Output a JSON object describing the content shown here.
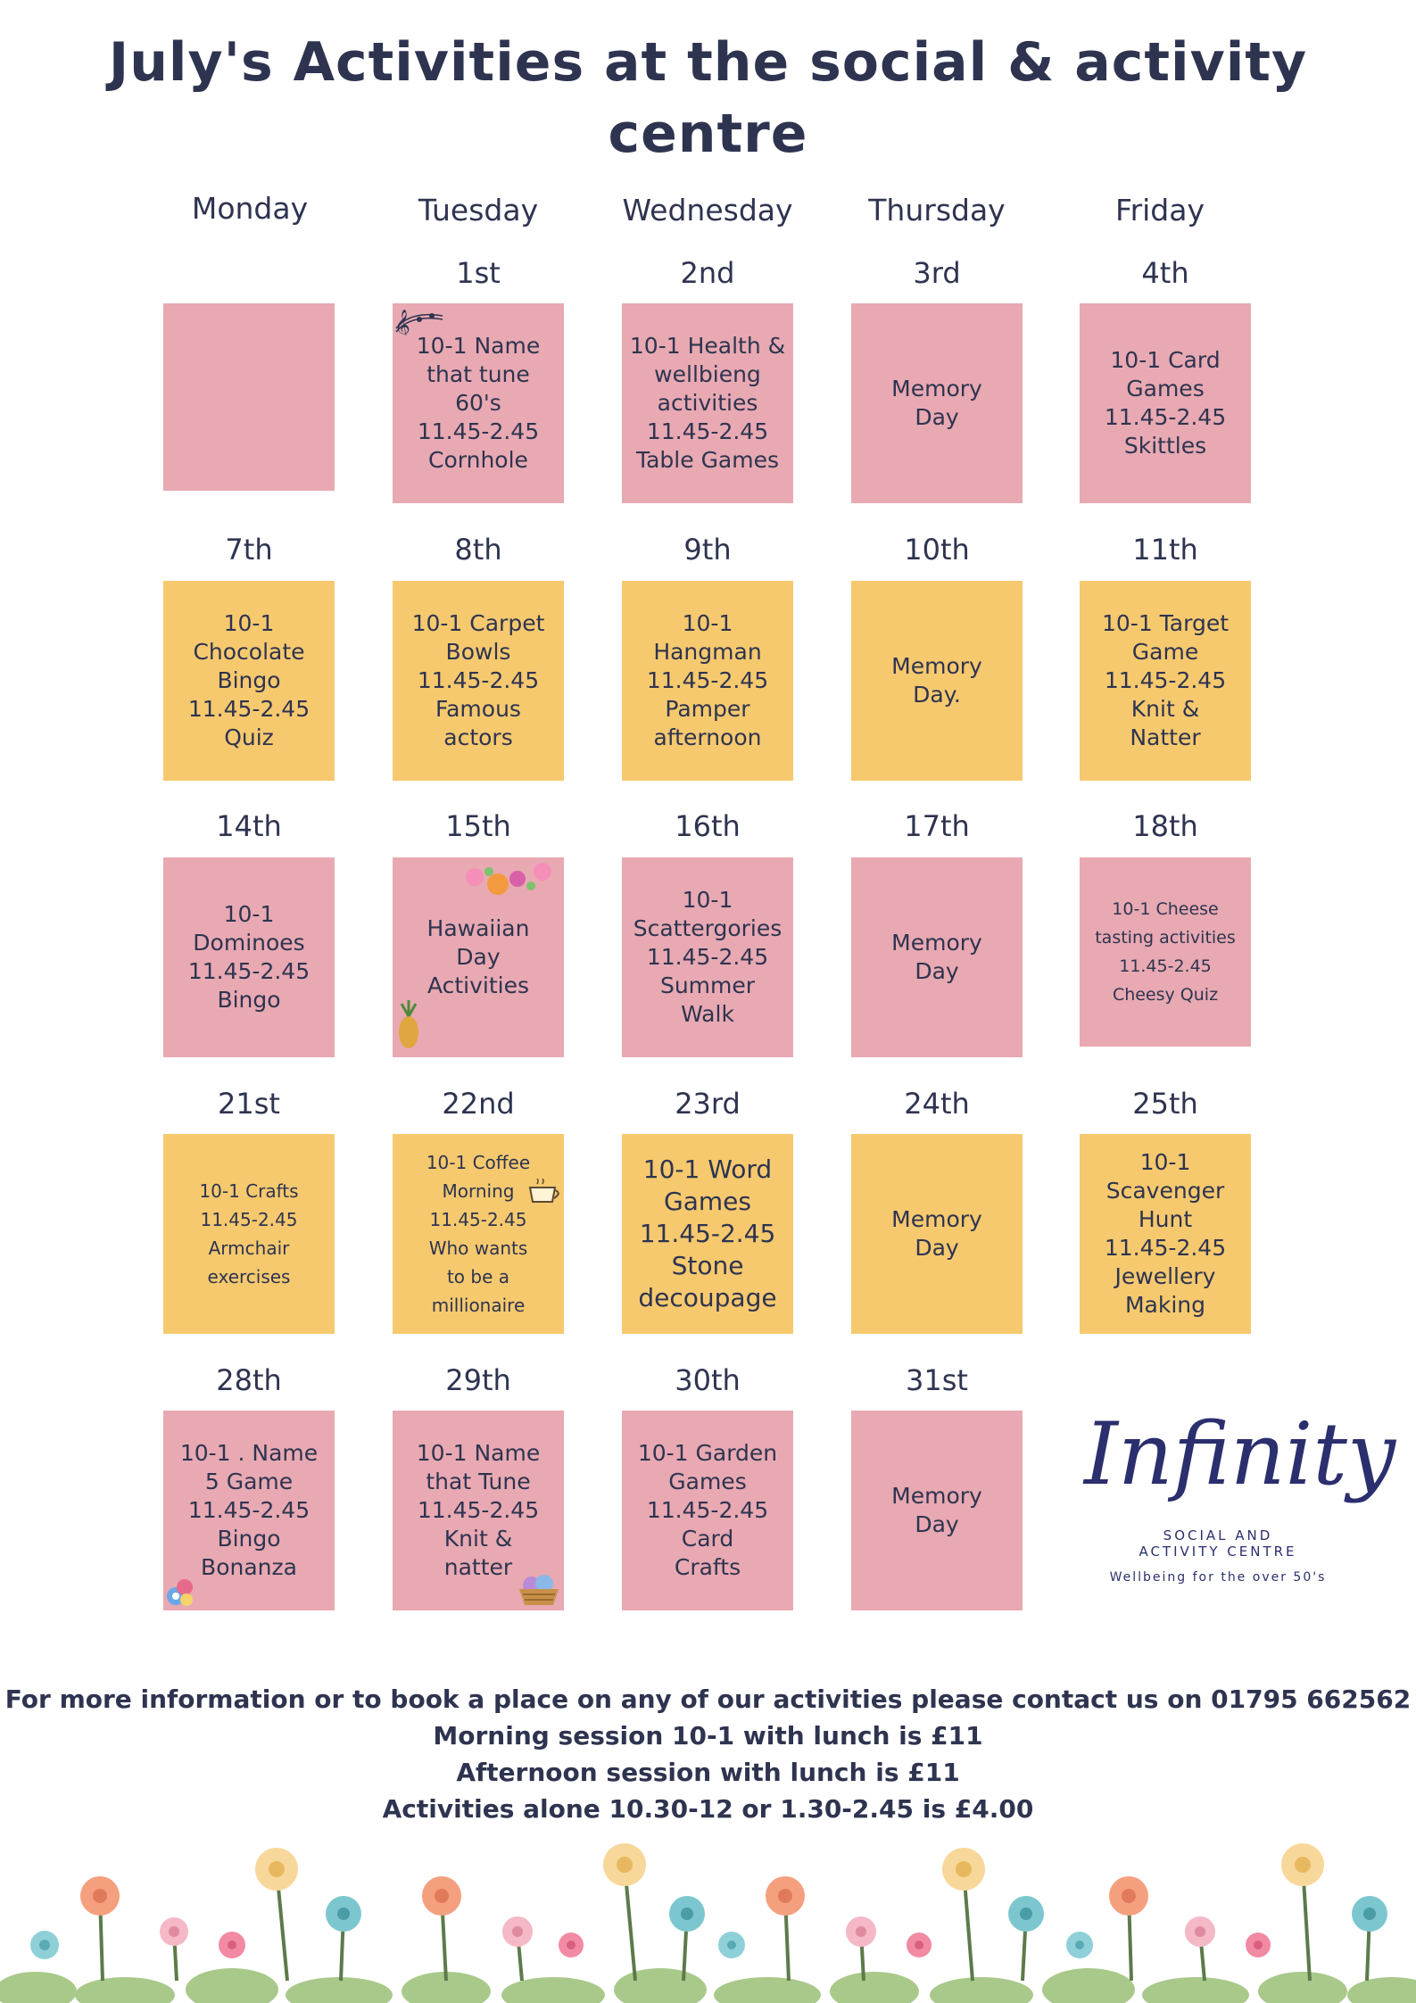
{
  "title_line1": "July's Activities at the social & activity",
  "title_line2": "centre",
  "days": [
    "Monday",
    "Tuesday",
    "Wednesday",
    "Thursday",
    "Friday"
  ],
  "weeks": [
    {
      "dates": [
        "",
        "1st",
        "2nd",
        "3rd",
        "4th"
      ],
      "cells": [
        {
          "color": "pink",
          "text": ""
        },
        {
          "color": "pink",
          "text": "10-1 Name\nthat tune\n60's\n11.45-2.45\nCornhole",
          "deco": "music-notes-icon"
        },
        {
          "color": "pink",
          "text": "10-1 Health &\nwellbieng\nactivities\n11.45-2.45\nTable Games"
        },
        {
          "color": "pink",
          "text": "Memory\nDay"
        },
        {
          "color": "pink",
          "text": "10-1 Card\nGames\n11.45-2.45\nSkittles"
        }
      ]
    },
    {
      "dates": [
        "7th",
        "8th",
        "9th",
        "10th",
        "11th"
      ],
      "cells": [
        {
          "color": "yellow",
          "text": "10-1\nChocolate\nBingo\n11.45-2.45\nQuiz"
        },
        {
          "color": "yellow",
          "text": "10-1 Carpet\nBowls\n11.45-2.45\nFamous\nactors"
        },
        {
          "color": "yellow",
          "text": "10-1\nHangman\n11.45-2.45\nPamper\nafternoon"
        },
        {
          "color": "yellow",
          "text": "Memory\nDay."
        },
        {
          "color": "yellow",
          "text": "10-1 Target\nGame\n11.45-2.45\nKnit &\nNatter"
        }
      ]
    },
    {
      "dates": [
        "14th",
        "15th",
        "16th",
        "17th",
        "18th"
      ],
      "cells": [
        {
          "color": "pink",
          "text": "10-1\nDominoes\n11.45-2.45\nBingo"
        },
        {
          "color": "pink",
          "text": "Hawaiian\nDay\nActivities",
          "deco": "hawaiian-flowers-icon"
        },
        {
          "color": "pink",
          "text": "10-1\nScattergories\n11.45-2.45\nSummer\nWalk"
        },
        {
          "color": "pink",
          "text": "Memory\nDay"
        },
        {
          "color": "pink",
          "text": "10-1 Cheese\ntasting activities\n11.45-2.45\nCheesy Quiz"
        }
      ]
    },
    {
      "dates": [
        "21st",
        "22nd",
        "23rd",
        "24th",
        "25th"
      ],
      "cells": [
        {
          "color": "yellow",
          "text": "10-1 Crafts\n11.45-2.45\nArmchair\nexercises"
        },
        {
          "color": "yellow",
          "text": "10-1 Coffee\nMorning\n11.45-2.45\nWho wants\nto be a\nmillionaire",
          "deco": "coffee-cup-icon"
        },
        {
          "color": "yellow",
          "text": "10-1  Word\nGames\n11.45-2.45\nStone\ndecoupage"
        },
        {
          "color": "yellow",
          "text": "Memory\nDay"
        },
        {
          "color": "yellow",
          "text": "10-1\nScavenger\nHunt\n11.45-2.45\nJewellery\nMaking"
        }
      ]
    },
    {
      "dates": [
        "28th",
        "29th",
        "30th",
        "31st",
        ""
      ],
      "cells": [
        {
          "color": "pink",
          "text": "10-1 . Name\n5 Game\n11.45-2.45\nBingo\nBonanza",
          "deco": "bingo-balls-icon"
        },
        {
          "color": "pink",
          "text": "10-1 Name\nthat Tune\n11.45-2.45\nKnit &\nnatter",
          "deco": "yarn-basket-icon"
        },
        {
          "color": "pink",
          "text": "10-1 Garden\nGames\n11.45-2.45\nCard\nCrafts"
        },
        {
          "color": "pink",
          "text": "Memory\nDay"
        }
      ]
    }
  ],
  "logo": {
    "script": "Infinity",
    "line1": "SOCIAL AND",
    "line2": "ACTIVITY CENTRE",
    "tagline": "Wellbeing for the over 50's"
  },
  "footer": {
    "line1": "For more information or to book a place on any of our activities please contact us on 01795 662562",
    "line2": "Morning session 10-1 with lunch is £11",
    "line3": "Afternoon session with lunch is £11",
    "line4": "Activities alone 10.30-12 or 1.30-2.45 is £4.00"
  },
  "colors": {
    "pink": "#e8a9b2",
    "yellow": "#f6c96e",
    "text": "#2e3450",
    "logo": "#2b2f6e"
  }
}
